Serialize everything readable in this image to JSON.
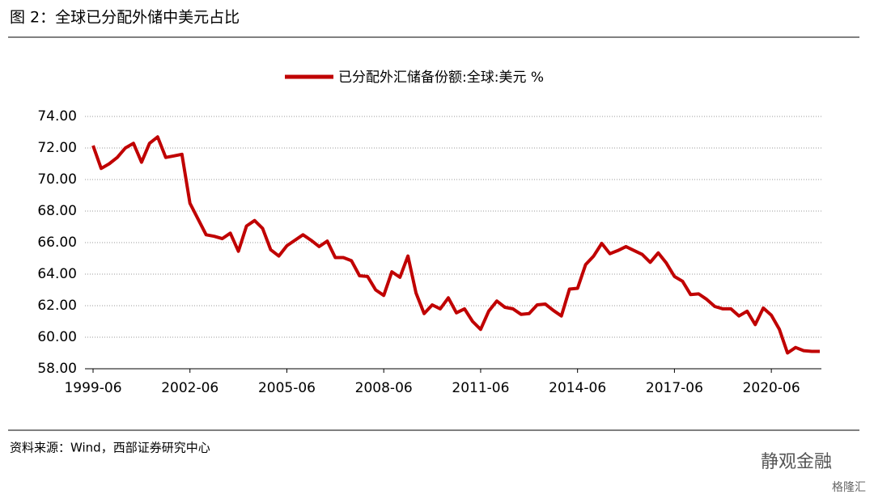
{
  "header": {
    "title": "图 2：全球已分配外储中美元占比"
  },
  "chart_data": {
    "type": "line",
    "categories": [
      "1999-06",
      null,
      null,
      null,
      null,
      null,
      null,
      null,
      null,
      null,
      null,
      null,
      "2002-06",
      null,
      null,
      null,
      null,
      null,
      null,
      null,
      null,
      null,
      null,
      null,
      "2005-06",
      null,
      null,
      null,
      null,
      null,
      null,
      null,
      null,
      null,
      null,
      null,
      "2008-06",
      null,
      null,
      null,
      null,
      null,
      null,
      null,
      null,
      null,
      null,
      null,
      "2011-06",
      null,
      null,
      null,
      null,
      null,
      null,
      null,
      null,
      null,
      null,
      null,
      "2014-06",
      null,
      null,
      null,
      null,
      null,
      null,
      null,
      null,
      null,
      null,
      null,
      "2017-06",
      null,
      null,
      null,
      null,
      null,
      null,
      null,
      null,
      null,
      null,
      null,
      "2020-06",
      null,
      null,
      null,
      null,
      null,
      null
    ],
    "series": [
      {
        "name": "已分配外汇储备份额:全球:美元 %",
        "color": "#c00000",
        "values": [
          72.15,
          70.7,
          71.0,
          71.4,
          72.0,
          72.3,
          71.1,
          72.3,
          72.7,
          71.4,
          71.5,
          71.6,
          68.5,
          67.5,
          66.5,
          66.4,
          66.25,
          66.6,
          65.45,
          67.05,
          67.4,
          66.9,
          65.55,
          65.15,
          65.8,
          66.15,
          66.5,
          66.15,
          65.75,
          66.1,
          65.05,
          65.05,
          64.85,
          63.9,
          63.85,
          63.0,
          62.65,
          64.15,
          63.8,
          65.15,
          62.8,
          61.5,
          62.05,
          61.8,
          62.5,
          61.55,
          61.8,
          61.0,
          60.5,
          61.65,
          62.3,
          61.9,
          61.8,
          61.45,
          61.5,
          62.05,
          62.1,
          61.7,
          61.35,
          63.05,
          63.1,
          64.6,
          65.15,
          65.95,
          65.3,
          65.5,
          65.75,
          65.5,
          65.25,
          64.75,
          65.35,
          64.7,
          63.85,
          63.55,
          62.7,
          62.75,
          62.4,
          61.95,
          61.8,
          61.8,
          61.35,
          61.65,
          60.8,
          61.85,
          61.4,
          60.5,
          59.0,
          59.35,
          59.15,
          59.1,
          59.1
        ]
      }
    ],
    "ylim": [
      58,
      74
    ],
    "yticks": [
      {
        "value": 58,
        "label": "58.00"
      },
      {
        "value": 60,
        "label": "60.00"
      },
      {
        "value": 62,
        "label": "62.00"
      },
      {
        "value": 64,
        "label": "64.00"
      },
      {
        "value": 66,
        "label": "66.00"
      },
      {
        "value": 68,
        "label": "68.00"
      },
      {
        "value": 70,
        "label": "70.00"
      },
      {
        "value": 72,
        "label": "72.00"
      },
      {
        "value": 74,
        "label": "74.00"
      }
    ],
    "grid": true,
    "legend": "top"
  },
  "footer": {
    "source": "资料来源：Wind，西部证券研究中心",
    "watermark": "静观金融",
    "logo": "格隆汇"
  }
}
